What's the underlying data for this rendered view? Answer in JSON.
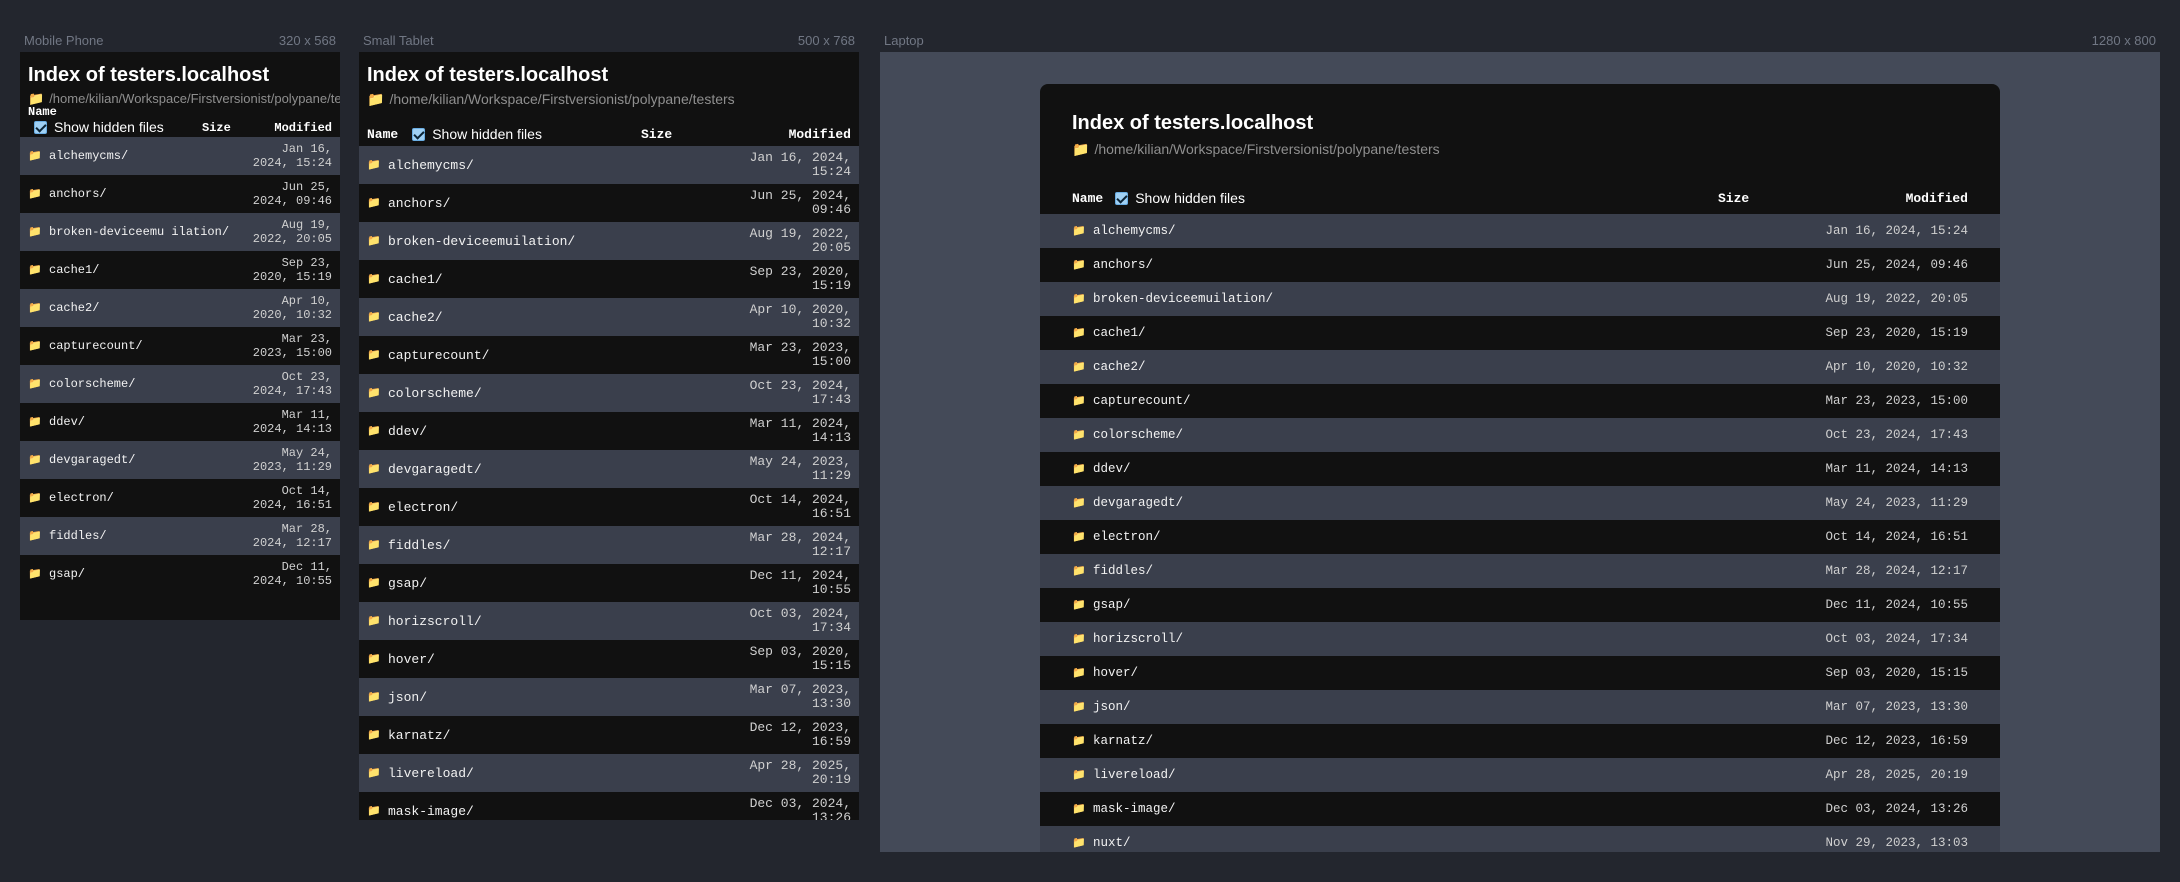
{
  "header": {
    "title": "Index of testers.localhost",
    "path_mobile": "/home/kilian/Workspace/Firstversionist/polypane/testers",
    "path": "/home/kilian/Workspace/Firstversionist/polypane/testers",
    "col_name": "Name",
    "col_size": "Size",
    "col_modified": "Modified",
    "show_hidden": "Show hidden files",
    "folder_icon": "folder-icon"
  },
  "devices": {
    "mobile": {
      "label": "Mobile Phone",
      "size": "320 x 568"
    },
    "tablet": {
      "label": "Small Tablet",
      "size": "500 x 768"
    },
    "laptop": {
      "label": "Laptop",
      "size": "1280 x 800"
    }
  },
  "rows_mobile": [
    {
      "name": "alchemycms/",
      "modified": "Jan 16, 2024, 15:24"
    },
    {
      "name": "anchors/",
      "modified": "Jun 25, 2024, 09:46"
    },
    {
      "name": "broken-deviceemu ilation/",
      "modified": "Aug 19, 2022, 20:05"
    },
    {
      "name": "cache1/",
      "modified": "Sep 23, 2020, 15:19"
    },
    {
      "name": "cache2/",
      "modified": "Apr 10, 2020, 10:32"
    },
    {
      "name": "capturecount/",
      "modified": "Mar 23, 2023, 15:00"
    },
    {
      "name": "colorscheme/",
      "modified": "Oct 23, 2024, 17:43"
    },
    {
      "name": "ddev/",
      "modified": "Mar 11, 2024, 14:13"
    },
    {
      "name": "devgaragedt/",
      "modified": "May 24, 2023, 11:29"
    },
    {
      "name": "electron/",
      "modified": "Oct 14, 2024, 16:51"
    },
    {
      "name": "fiddles/",
      "modified": "Mar 28, 2024, 12:17"
    },
    {
      "name": "gsap/",
      "modified": "Dec 11, 2024, 10:55"
    }
  ],
  "rows": [
    {
      "name": "alchemycms/",
      "modified": "Jan 16, 2024, 15:24"
    },
    {
      "name": "anchors/",
      "modified": "Jun 25, 2024, 09:46"
    },
    {
      "name": "broken-deviceemuilation/",
      "modified": "Aug 19, 2022, 20:05"
    },
    {
      "name": "cache1/",
      "modified": "Sep 23, 2020, 15:19"
    },
    {
      "name": "cache2/",
      "modified": "Apr 10, 2020, 10:32"
    },
    {
      "name": "capturecount/",
      "modified": "Mar 23, 2023, 15:00"
    },
    {
      "name": "colorscheme/",
      "modified": "Oct 23, 2024, 17:43"
    },
    {
      "name": "ddev/",
      "modified": "Mar 11, 2024, 14:13"
    },
    {
      "name": "devgaragedt/",
      "modified": "May 24, 2023, 11:29"
    },
    {
      "name": "electron/",
      "modified": "Oct 14, 2024, 16:51"
    },
    {
      "name": "fiddles/",
      "modified": "Mar 28, 2024, 12:17"
    },
    {
      "name": "gsap/",
      "modified": "Dec 11, 2024, 10:55"
    },
    {
      "name": "horizscroll/",
      "modified": "Oct 03, 2024, 17:34"
    },
    {
      "name": "hover/",
      "modified": "Sep 03, 2020, 15:15"
    },
    {
      "name": "json/",
      "modified": "Mar 07, 2023, 13:30"
    },
    {
      "name": "karnatz/",
      "modified": "Dec 12, 2023, 16:59"
    },
    {
      "name": "livereload/",
      "modified": "Apr 28, 2025, 20:19"
    },
    {
      "name": "mask-image/",
      "modified": "Dec 03, 2024, 13:26"
    },
    {
      "name": "nuxt/",
      "modified": "Nov 29, 2023, 13:03"
    }
  ]
}
